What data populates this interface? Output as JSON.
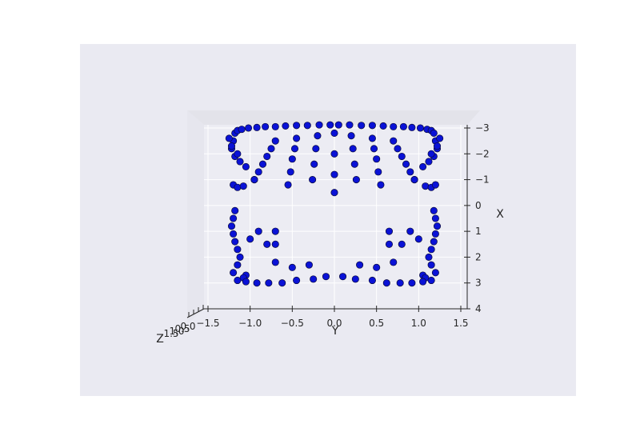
{
  "chart_data": {
    "type": "scatter",
    "view": "3d-scatter",
    "title": "",
    "axes": {
      "x": {
        "label": "Y",
        "ticks": [
          "−1.5",
          "−1.0",
          "−0.5",
          "0.0",
          "0.5",
          "1.0",
          "1.5"
        ],
        "range": [
          -1.5,
          1.5
        ]
      },
      "y": {
        "label": "X",
        "ticks": [
          "−3",
          "−2",
          "−1",
          "0",
          "1",
          "2",
          "3",
          "4"
        ],
        "range": [
          -3,
          4
        ]
      },
      "z": {
        "label": "Z",
        "ticks": [
          "1.5",
          "1.0",
          "0.5",
          "0.0"
        ]
      }
    },
    "grid": true,
    "colors": {
      "point": "#0a12d6",
      "edge": "#0b0b3a",
      "pane": "#eaeaf2",
      "grid": "#ffffff"
    },
    "series": [
      {
        "x": [
          -1.18,
          -1.15,
          -1.1,
          -1.02,
          -0.92,
          -0.82,
          -0.7,
          -0.58,
          -0.45,
          -0.32,
          -0.18,
          -0.05,
          0.05,
          0.18,
          0.32,
          0.45,
          0.58,
          0.7,
          0.82,
          0.92,
          1.02,
          1.1,
          1.15,
          1.18,
          -1.2,
          -1.22,
          -1.18,
          -1.12,
          1.12,
          1.18,
          1.22,
          1.2,
          -1.2,
          -1.15,
          -1.08,
          1.08,
          1.15,
          1.2,
          -1.25,
          -1.22,
          -1.15,
          -1.05,
          -0.95,
          1.25,
          1.22,
          1.15,
          1.05,
          0.95,
          -0.7,
          -0.75,
          -0.8,
          -0.85,
          -0.9,
          -0.95,
          0.7,
          0.75,
          0.8,
          0.85,
          0.9,
          0.95,
          -0.45,
          -0.47,
          -0.5,
          -0.52,
          -0.55,
          0.45,
          0.47,
          0.5,
          0.52,
          0.55,
          -0.2,
          -0.22,
          -0.24,
          -0.26,
          0.2,
          0.22,
          0.24,
          0.26,
          0.0,
          0.0,
          0.0,
          0.0,
          -1.18,
          -1.2,
          -1.22,
          -1.2,
          -1.18,
          -1.15,
          -1.12,
          -1.15,
          -1.2,
          -1.05,
          -1.08,
          1.18,
          1.2,
          1.22,
          1.2,
          1.18,
          1.15,
          1.12,
          1.15,
          1.2,
          1.05,
          1.08,
          -1.15,
          -1.05,
          -0.92,
          -0.78,
          -0.62,
          -0.45,
          -0.25,
          -0.1,
          0.1,
          0.25,
          0.45,
          0.62,
          0.78,
          0.92,
          1.05,
          1.15,
          -1.0,
          -0.9,
          -0.8,
          1.0,
          0.9,
          0.8,
          -0.7,
          -0.7,
          0.65,
          0.65,
          -0.7,
          -0.5,
          -0.3,
          0.3,
          0.5,
          0.7
        ],
        "y": [
          -2.8,
          -2.9,
          -2.95,
          -3.0,
          -3.02,
          -3.05,
          -3.05,
          -3.08,
          -3.1,
          -3.1,
          -3.12,
          -3.12,
          -3.12,
          -3.12,
          -3.1,
          -3.1,
          -3.08,
          -3.05,
          -3.05,
          -3.02,
          -3.0,
          -2.95,
          -2.9,
          -2.8,
          -2.5,
          -2.2,
          -1.9,
          -1.7,
          -1.7,
          -1.9,
          -2.2,
          -2.5,
          -0.8,
          -0.7,
          -0.75,
          -0.75,
          -0.7,
          -0.8,
          -2.6,
          -2.3,
          -2.0,
          -1.5,
          -1.0,
          -2.6,
          -2.3,
          -2.0,
          -1.5,
          -1.0,
          -2.5,
          -2.2,
          -1.9,
          -1.6,
          -1.3,
          -1.0,
          -2.5,
          -2.2,
          -1.9,
          -1.6,
          -1.3,
          -1.0,
          -2.6,
          -2.2,
          -1.8,
          -1.3,
          -0.8,
          -2.6,
          -2.2,
          -1.8,
          -1.3,
          -0.8,
          -2.7,
          -2.2,
          -1.6,
          -1.0,
          -2.7,
          -2.2,
          -1.6,
          -1.0,
          -2.8,
          -2.0,
          -1.2,
          -0.5,
          0.2,
          0.5,
          0.8,
          1.1,
          1.4,
          1.7,
          2.0,
          2.3,
          2.6,
          2.7,
          2.8,
          0.2,
          0.5,
          0.8,
          1.1,
          1.4,
          1.7,
          2.0,
          2.3,
          2.6,
          2.7,
          2.8,
          2.9,
          2.95,
          3.0,
          3.0,
          3.0,
          2.9,
          2.85,
          2.75,
          2.75,
          2.85,
          2.9,
          3.0,
          3.0,
          3.0,
          2.95,
          2.9,
          1.3,
          1.0,
          1.5,
          1.3,
          1.0,
          1.5,
          1.0,
          1.5,
          1.0,
          1.5,
          2.2,
          2.4,
          2.3,
          2.3,
          2.4,
          2.2
        ]
      }
    ]
  }
}
